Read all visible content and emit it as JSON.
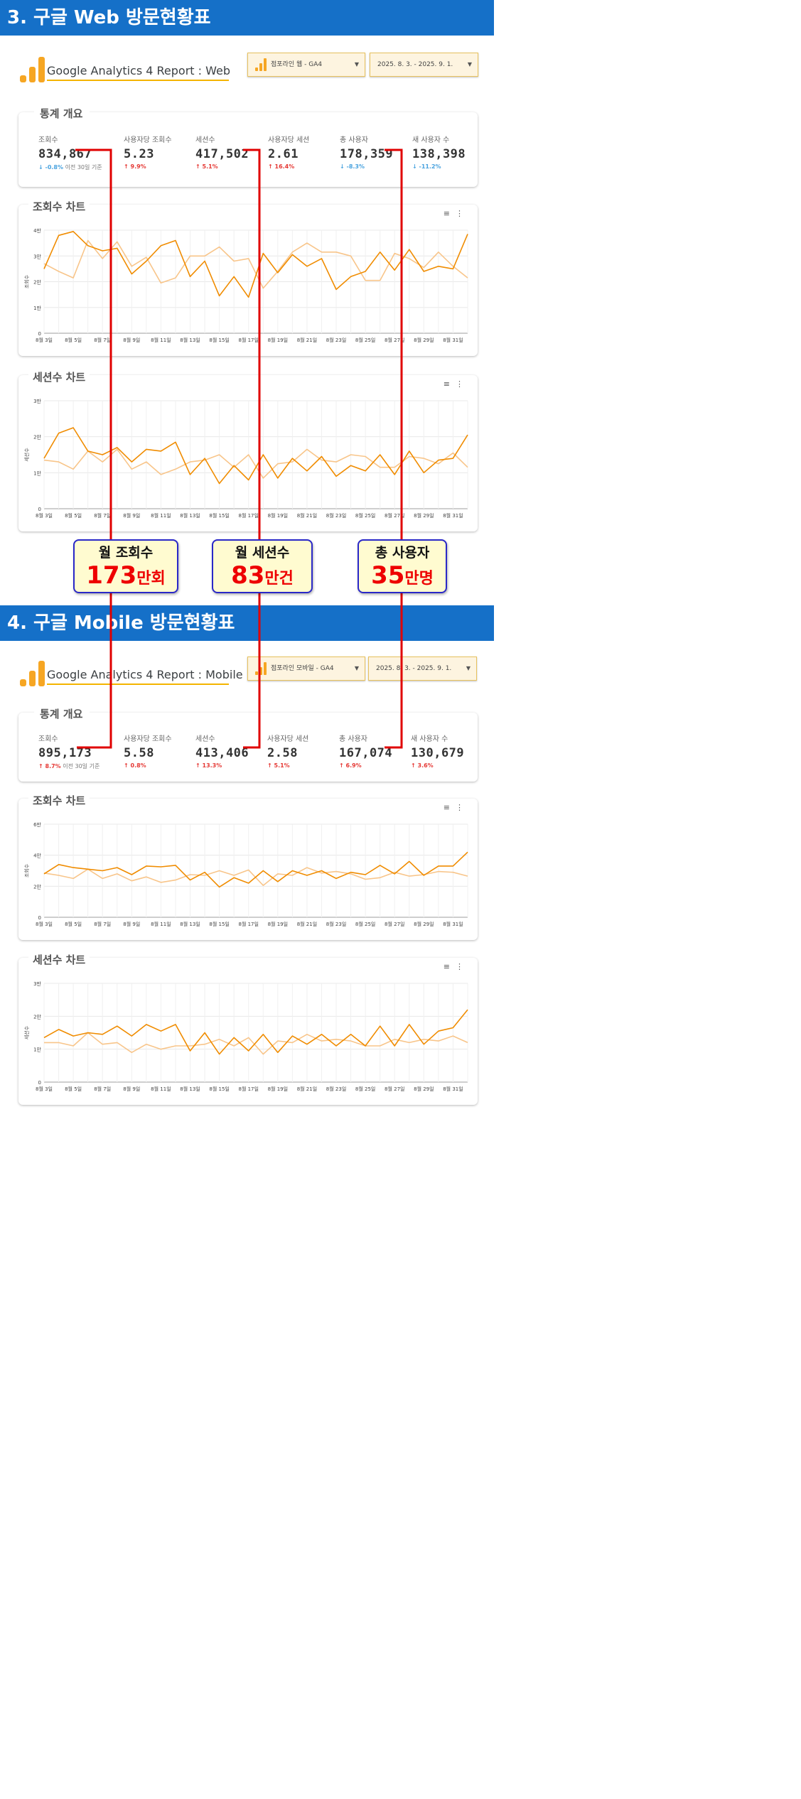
{
  "sections": [
    {
      "heading": "3. 구글 Web 방문현황표",
      "report_title": "Google Analytics 4 Report : Web",
      "property_label": "점포라인 웹 - GA4",
      "date_range": "2025. 8. 3. - 2025. 9. 1.",
      "stats_title": "통계 개요",
      "kpis": [
        {
          "label": "조회수",
          "value": "834,867",
          "change": "-0.8%",
          "direction": "down",
          "note": "이전 30일 기준"
        },
        {
          "label": "사용자당 조회수",
          "value": "5.23",
          "change": "9.9%",
          "direction": "up",
          "note": ""
        },
        {
          "label": "세션수",
          "value": "417,502",
          "change": "5.1%",
          "direction": "up",
          "note": ""
        },
        {
          "label": "사용자당 세션",
          "value": "2.61",
          "change": "16.4%",
          "direction": "up",
          "note": ""
        },
        {
          "label": "총 사용자",
          "value": "178,359",
          "change": "-8.3%",
          "direction": "down",
          "note": ""
        },
        {
          "label": "새 사용자 수",
          "value": "138,398",
          "change": "-11.2%",
          "direction": "down",
          "note": ""
        }
      ]
    },
    {
      "heading": "4. 구글 Mobile 방문현황표",
      "report_title": "Google Analytics 4 Report : Mobile",
      "property_label": "점포라인 모바일 - GA4",
      "date_range": "2025. 8. 3. - 2025. 9. 1.",
      "stats_title": "통계 개요",
      "kpis": [
        {
          "label": "조회수",
          "value": "895,173",
          "change": "8.7%",
          "direction": "up",
          "note": "이전 30일 기준"
        },
        {
          "label": "사용자당 조회수",
          "value": "5.58",
          "change": "0.8%",
          "direction": "up",
          "note": ""
        },
        {
          "label": "세션수",
          "value": "413,406",
          "change": "13.3%",
          "direction": "up",
          "note": ""
        },
        {
          "label": "사용자당 세션",
          "value": "2.58",
          "change": "5.1%",
          "direction": "up",
          "note": ""
        },
        {
          "label": "총 사용자",
          "value": "167,074",
          "change": "6.9%",
          "direction": "up",
          "note": ""
        },
        {
          "label": "새 사용자 수",
          "value": "130,679",
          "change": "3.6%",
          "direction": "up",
          "note": ""
        }
      ]
    }
  ],
  "callouts": [
    {
      "title": "월 조회수",
      "number": "173",
      "unit": "만회"
    },
    {
      "title": "월 세션수",
      "number": "83",
      "unit": "만건"
    },
    {
      "title": "총 사용자",
      "number": "35",
      "unit": "만명"
    }
  ],
  "chart_data": [
    {
      "type": "line",
      "title": "조회수 차트",
      "ylabel": "조회수",
      "ylim": [
        0,
        40000
      ],
      "y_ticks": [
        0,
        10000,
        20000,
        30000,
        40000
      ],
      "y_tick_labels": [
        "0",
        "1만",
        "2만",
        "3만",
        "4만"
      ],
      "x_tick_labels": [
        "8월 3일",
        "8월 5일",
        "8월 7일",
        "8월 9일",
        "8월 11일",
        "8월 13일",
        "8월 15일",
        "8월 17일",
        "8월 19일",
        "8월 21일",
        "8월 23일",
        "8월 25일",
        "8월 27일",
        "8월 29일",
        "8월 31일"
      ],
      "grid": true,
      "series": [
        {
          "values": [
            25000,
            38000,
            39500,
            34000,
            32000,
            33000,
            23000,
            28000,
            34000,
            36000,
            22000,
            28000,
            14500,
            22000,
            14000,
            31000,
            23500,
            30500,
            26000,
            29000,
            17000,
            22000,
            24000,
            31500,
            24500,
            32500,
            24000,
            26000,
            25000,
            38500
          ],
          "color": "#f08c00"
        },
        {
          "values": [
            27000,
            24000,
            21500,
            36000,
            29000,
            35500,
            26000,
            29500,
            19500,
            21500,
            30000,
            30000,
            33500,
            28000,
            29000,
            17500,
            24000,
            31500,
            35000,
            31500,
            31500,
            30000,
            20500,
            20500,
            31000,
            29000,
            25500,
            31500,
            26000,
            21500
          ],
          "color": "#f8c58a"
        }
      ]
    },
    {
      "type": "line",
      "title": "세션수 차트",
      "ylabel": "세션수",
      "ylim": [
        0,
        30000
      ],
      "y_ticks": [
        0,
        10000,
        20000,
        30000
      ],
      "y_tick_labels": [
        "0",
        "1만",
        "2만",
        "3만"
      ],
      "x_tick_labels": [
        "8월 3일",
        "8월 5일",
        "8월 7일",
        "8월 9일",
        "8월 11일",
        "8월 13일",
        "8월 15일",
        "8월 17일",
        "8월 19일",
        "8월 21일",
        "8월 23일",
        "8월 25일",
        "8월 27일",
        "8월 29일",
        "8월 31일"
      ],
      "grid": true,
      "series": [
        {
          "values": [
            14000,
            21000,
            22500,
            16000,
            15000,
            17000,
            13000,
            16500,
            16000,
            18500,
            9500,
            14000,
            7000,
            12000,
            8000,
            15000,
            8500,
            14000,
            10500,
            14500,
            9000,
            12000,
            10500,
            15000,
            9500,
            16000,
            10000,
            13500,
            14000,
            20500
          ],
          "color": "#f08c00"
        },
        {
          "values": [
            13500,
            13000,
            11000,
            16000,
            13000,
            16500,
            11000,
            13000,
            9500,
            11000,
            13000,
            13500,
            15000,
            11500,
            15000,
            8500,
            12500,
            13000,
            16500,
            13500,
            13000,
            15000,
            14500,
            11500,
            11500,
            14500,
            14000,
            12500,
            15500,
            11500
          ],
          "color": "#f8c58a"
        }
      ]
    },
    {
      "type": "line",
      "title": "조회수 차트",
      "ylabel": "조회수",
      "ylim": [
        0,
        60000
      ],
      "y_ticks": [
        0,
        20000,
        40000,
        60000
      ],
      "y_tick_labels": [
        "0",
        "2만",
        "4만",
        "6만"
      ],
      "x_tick_labels": [
        "8월 3일",
        "8월 5일",
        "8월 7일",
        "8월 9일",
        "8월 11일",
        "8월 13일",
        "8월 15일",
        "8월 17일",
        "8월 19일",
        "8월 21일",
        "8월 23일",
        "8월 25일",
        "8월 27일",
        "8월 29일",
        "8월 31일"
      ],
      "grid": true,
      "series": [
        {
          "values": [
            28000,
            34000,
            32000,
            31000,
            30000,
            32000,
            27500,
            33000,
            32500,
            33500,
            24000,
            29000,
            19500,
            25500,
            22000,
            30000,
            23000,
            30000,
            27000,
            30000,
            25000,
            29000,
            27500,
            33500,
            28000,
            36000,
            27000,
            33000,
            33000,
            42000
          ],
          "color": "#f08c00"
        },
        {
          "values": [
            28500,
            27000,
            25000,
            31000,
            25000,
            28000,
            23500,
            26000,
            22500,
            24000,
            27500,
            27000,
            30000,
            27000,
            30500,
            20500,
            28000,
            27000,
            32000,
            28500,
            29500,
            28000,
            24500,
            25500,
            29000,
            26500,
            27500,
            29500,
            29000,
            26500
          ],
          "color": "#f8c58a"
        }
      ]
    },
    {
      "type": "line",
      "title": "세션수 차트",
      "ylabel": "세션수",
      "ylim": [
        0,
        30000
      ],
      "y_ticks": [
        0,
        10000,
        20000,
        30000
      ],
      "y_tick_labels": [
        "0",
        "1만",
        "2만",
        "3만"
      ],
      "x_tick_labels": [
        "8월 3일",
        "8월 5일",
        "8월 7일",
        "8월 9일",
        "8월 11일",
        "8월 13일",
        "8월 15일",
        "8월 17일",
        "8월 19일",
        "8월 21일",
        "8월 23일",
        "8월 25일",
        "8월 27일",
        "8월 29일",
        "8월 31일"
      ],
      "grid": true,
      "series": [
        {
          "values": [
            13500,
            16000,
            14000,
            15000,
            14500,
            17000,
            14000,
            17500,
            15500,
            17500,
            9500,
            15000,
            8500,
            13500,
            9500,
            14500,
            9000,
            14000,
            11500,
            14500,
            11000,
            14500,
            11000,
            17000,
            11000,
            17500,
            11500,
            15500,
            16500,
            22000
          ],
          "color": "#f08c00"
        },
        {
          "values": [
            12000,
            12000,
            11000,
            15000,
            11500,
            12000,
            9000,
            11500,
            10000,
            11000,
            11000,
            11500,
            13000,
            11000,
            13500,
            8500,
            12500,
            12000,
            14500,
            12500,
            13000,
            12500,
            11000,
            11000,
            13000,
            12000,
            13000,
            12500,
            14000,
            12000
          ],
          "color": "#f8c58a"
        }
      ]
    }
  ]
}
